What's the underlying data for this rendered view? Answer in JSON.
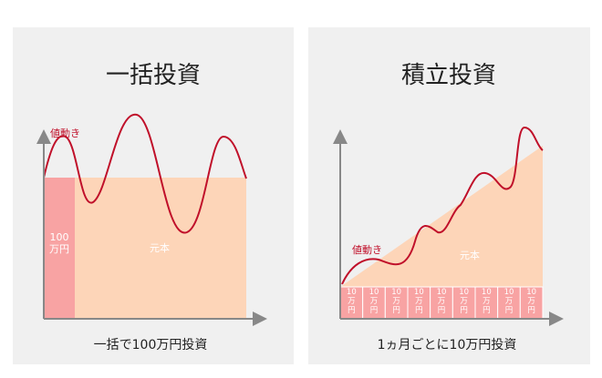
{
  "panels": [
    {
      "title": "一括投資",
      "line_label": "値動き",
      "principal_label": "元本",
      "blocks": [
        "100万円"
      ],
      "caption": "一括で100万円投資"
    },
    {
      "title": "積立投資",
      "line_label": "値動き",
      "principal_label": "元本",
      "blocks": [
        "10万円",
        "10万円",
        "10万円",
        "10万円",
        "10万円",
        "10万円",
        "10万円",
        "10万円",
        "10万円"
      ],
      "caption": "1ヵ月ごとに10万円投資"
    }
  ]
}
